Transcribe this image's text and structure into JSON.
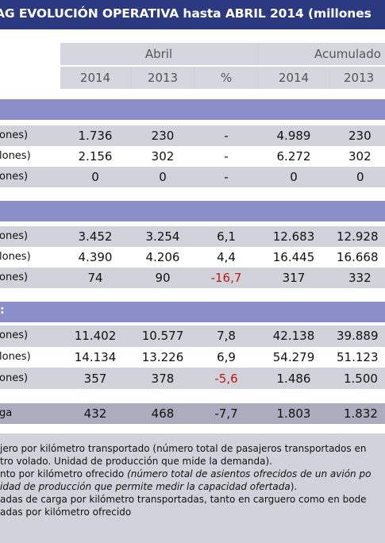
{
  "title": "AG EVOLUCIÓN OPERATIVA hasta ABRIL 2014 (millones",
  "header": {
    "group_april": "Abril",
    "group_accum": "Acumulado",
    "cols": [
      "2014",
      "2013",
      "%",
      "2014",
      "2013"
    ]
  },
  "groups": [
    {
      "rows": [
        {
          "label": "ones)",
          "values": [
            "1.736",
            "230",
            "-",
            "4.989",
            "230"
          ]
        },
        {
          "label": "lones)",
          "values": [
            "2.156",
            "302",
            "-",
            "6.272",
            "302"
          ]
        },
        {
          "label": "ones)",
          "values": [
            "0",
            "0",
            "-",
            "0",
            "0"
          ]
        }
      ]
    },
    {
      "rows": [
        {
          "label": "ones)",
          "values": [
            "3.452",
            "3.254",
            "6,1",
            "12.683",
            "12.928"
          ]
        },
        {
          "label": "lones)",
          "values": [
            "4.390",
            "4.206",
            "4,4",
            "16.445",
            "16.668"
          ]
        },
        {
          "label": "ones)",
          "values": [
            "74",
            "90",
            "-16,7",
            "317",
            "332"
          ]
        }
      ]
    },
    {
      "bar_text": ":",
      "rows": [
        {
          "label": "ones)",
          "values": [
            "11.402",
            "10.577",
            "7,8",
            "42.138",
            "39.889"
          ]
        },
        {
          "label": "lones)",
          "values": [
            "14.134",
            "13.226",
            "6,9",
            "54.279",
            "51.123"
          ]
        },
        {
          "label": "ones)",
          "values": [
            "357",
            "378",
            "-5,6",
            "1.486",
            "1.500"
          ]
        }
      ]
    }
  ],
  "total_row": {
    "label": "ga",
    "values": [
      "432",
      "468",
      "-7,7",
      "1.803",
      "1.832"
    ]
  },
  "notes": {
    "line1": "jero por kilómetro transportado (número total de pasajeros transportados en",
    "line2": "tro volado. Unidad de producción que mide la demanda).",
    "line3_plain": "nto por kilómetro ofrecido ",
    "line3_italic": "(número total de asientos ofrecidos de un avión po",
    "line4_italic": "idad de producción que permite medir la capacidad ofertada",
    "line4_plain": ").",
    "line5": "adas de carga por kilómetro transportadas, tanto en carguero como en bode",
    "line6": "adas por kilómetro ofrecido"
  },
  "colors": {
    "title_bg": "#2b3a80",
    "section_bar": "#8c8ec9",
    "shade": "#d2d3da",
    "negative": "#c01818"
  }
}
